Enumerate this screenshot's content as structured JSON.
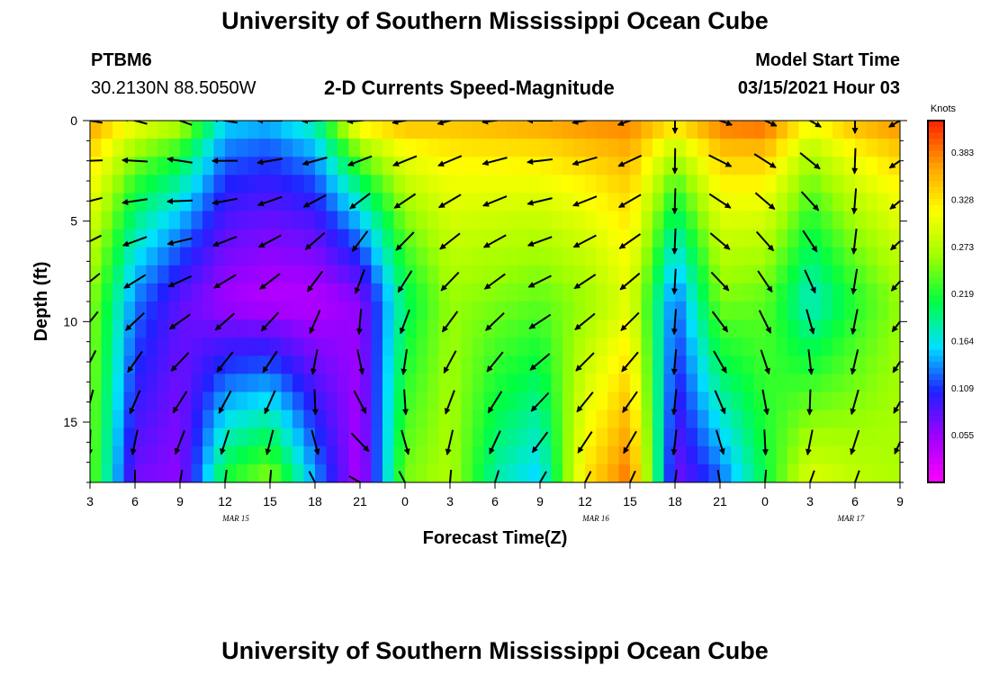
{
  "header": {
    "title": "University of Southern Mississippi Ocean Cube",
    "station": "PTBM6",
    "location": "30.2130N 88.5050W",
    "plot_title": "2-D Currents Speed-Magnitude",
    "model_label": "Model Start Time",
    "model_time": "03/15/2021 Hour 03"
  },
  "footer": {
    "title": "University of Southern Mississippi Ocean Cube"
  },
  "colorbar": {
    "unit": "Knots",
    "ticks": [
      "0.383",
      "0.328",
      "0.273",
      "0.219",
      "0.164",
      "0.109",
      "0.055"
    ],
    "tick_values": [
      0.383,
      0.328,
      0.273,
      0.219,
      0.164,
      0.109,
      0.055
    ],
    "range": [
      0.0,
      0.42
    ],
    "colors": [
      "#ff00ff",
      "#a000ff",
      "#2020ff",
      "#00e0ff",
      "#00ff40",
      "#a0ff00",
      "#ffff00",
      "#ffa000",
      "#ff2000"
    ]
  },
  "chart_data": {
    "type": "heatmap",
    "title": "2-D Currents Speed-Magnitude",
    "xlabel": "Forecast Time(Z)",
    "ylabel": "Depth (ft)",
    "x_tick_labels": [
      "3",
      "6",
      "9",
      "12",
      "15",
      "18",
      "21",
      "0",
      "3",
      "6",
      "9",
      "12",
      "15",
      "18",
      "21",
      "0",
      "3",
      "6",
      "9"
    ],
    "x_range_hours": [
      3,
      57
    ],
    "day_labels": [
      {
        "label": "MAR 15",
        "hour": 12
      },
      {
        "label": "MAR 16",
        "hour": 36
      },
      {
        "label": "MAR 17",
        "hour": 53
      }
    ],
    "y_ticks": [
      "0",
      "5",
      "10",
      "15"
    ],
    "y_tick_values": [
      0,
      5,
      10,
      15
    ],
    "ylim": [
      0,
      18
    ],
    "y_inverted": true,
    "speed_profile_by_hour": [
      {
        "hour": 3,
        "surface": 0.38,
        "mid": 0.26,
        "bottom": 0.25
      },
      {
        "hour": 6,
        "surface": 0.33,
        "mid": 0.13,
        "bottom": 0.07
      },
      {
        "hour": 9,
        "surface": 0.3,
        "mid": 0.08,
        "bottom": 0.06
      },
      {
        "hour": 12,
        "surface": 0.17,
        "mid": 0.05,
        "bottom": 0.22
      },
      {
        "hour": 15,
        "surface": 0.16,
        "mid": 0.04,
        "bottom": 0.26
      },
      {
        "hour": 18,
        "surface": 0.2,
        "mid": 0.04,
        "bottom": 0.14
      },
      {
        "hour": 21,
        "surface": 0.36,
        "mid": 0.06,
        "bottom": 0.04
      },
      {
        "hour": 24,
        "surface": 0.37,
        "mid": 0.2,
        "bottom": 0.25
      },
      {
        "hour": 27,
        "surface": 0.36,
        "mid": 0.26,
        "bottom": 0.27
      },
      {
        "hour": 30,
        "surface": 0.37,
        "mid": 0.25,
        "bottom": 0.18
      },
      {
        "hour": 33,
        "surface": 0.38,
        "mid": 0.24,
        "bottom": 0.15
      },
      {
        "hour": 36,
        "surface": 0.39,
        "mid": 0.26,
        "bottom": 0.33
      },
      {
        "hour": 39,
        "surface": 0.39,
        "mid": 0.3,
        "bottom": 0.39
      },
      {
        "hour": 42,
        "surface": 0.36,
        "mid": 0.12,
        "bottom": 0.07
      },
      {
        "hour": 45,
        "surface": 0.4,
        "mid": 0.25,
        "bottom": 0.12
      },
      {
        "hour": 48,
        "surface": 0.41,
        "mid": 0.24,
        "bottom": 0.21
      },
      {
        "hour": 51,
        "surface": 0.33,
        "mid": 0.17,
        "bottom": 0.3
      },
      {
        "hour": 54,
        "surface": 0.37,
        "mid": 0.22,
        "bottom": 0.28
      },
      {
        "hour": 57,
        "surface": 0.39,
        "mid": 0.26,
        "bottom": 0.27
      }
    ],
    "vector_depths": [
      0,
      2,
      4,
      6,
      8,
      10,
      12,
      14,
      16,
      18
    ],
    "vector_direction_by_hour_deg": [
      {
        "hour": 3,
        "surface": 190,
        "bottom": 80
      },
      {
        "hour": 9,
        "surface": 200,
        "bottom": 100
      },
      {
        "hour": 15,
        "surface": 180,
        "bottom": 95
      },
      {
        "hour": 21,
        "surface": 175,
        "bottom": 30
      },
      {
        "hour": 27,
        "surface": 165,
        "bottom": 95
      },
      {
        "hour": 33,
        "surface": 180,
        "bottom": 120
      },
      {
        "hour": 39,
        "surface": 160,
        "bottom": 115
      },
      {
        "hour": 45,
        "surface": 20,
        "bottom": 80
      },
      {
        "hour": 51,
        "surface": 30,
        "bottom": 110
      },
      {
        "hour": 57,
        "surface": 150,
        "bottom": 110
      }
    ]
  }
}
